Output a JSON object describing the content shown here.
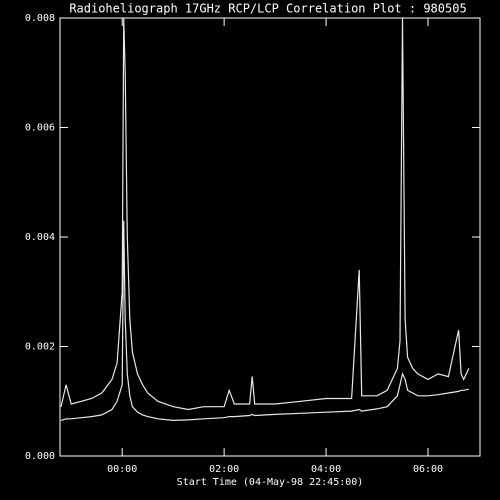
{
  "chart_data": {
    "type": "line",
    "title": "Radioheliograph 17GHz RCP/LCP Correlation Plot : 980505",
    "x_label": "Start Time (04-May-98 22:45:00)",
    "x": [
      -1.2,
      -1.1,
      -1.0,
      -0.8,
      -0.6,
      -0.4,
      -0.2,
      -0.1,
      0.0,
      0.03,
      0.06,
      0.1,
      0.15,
      0.2,
      0.3,
      0.4,
      0.5,
      0.7,
      1.0,
      1.3,
      1.6,
      2.0,
      2.1,
      2.2,
      2.5,
      2.55,
      2.6,
      3.0,
      3.5,
      4.0,
      4.5,
      4.65,
      4.7,
      5.0,
      5.2,
      5.4,
      5.45,
      5.5,
      5.55,
      5.6,
      5.7,
      5.8,
      6.0,
      6.2,
      6.4,
      6.6,
      6.65,
      6.7,
      6.8
    ],
    "series": [
      {
        "color": "#e8e8e8",
        "values": [
          0.0009,
          0.0013,
          0.00095,
          0.001,
          0.00105,
          0.00115,
          0.0014,
          0.0017,
          0.003,
          0.008,
          0.007,
          0.004,
          0.0025,
          0.0019,
          0.0015,
          0.0013,
          0.00115,
          0.001,
          0.0009,
          0.00085,
          0.0009,
          0.0009,
          0.0012,
          0.00095,
          0.00095,
          0.00145,
          0.00095,
          0.00095,
          0.001,
          0.00105,
          0.00105,
          0.0034,
          0.0011,
          0.0011,
          0.0012,
          0.0016,
          0.0021,
          0.008,
          0.0025,
          0.0018,
          0.0016,
          0.0015,
          0.0014,
          0.0015,
          0.00145,
          0.0023,
          0.0015,
          0.0014,
          0.0016
        ]
      },
      {
        "color": "#e8e8e8",
        "values": [
          0.00065,
          0.00068,
          0.00068,
          0.0007,
          0.00072,
          0.00075,
          0.00085,
          0.001,
          0.0013,
          0.0043,
          0.0025,
          0.0015,
          0.0011,
          0.0009,
          0.0008,
          0.00075,
          0.00072,
          0.00068,
          0.00065,
          0.00066,
          0.00068,
          0.0007,
          0.00072,
          0.00072,
          0.00074,
          0.00076,
          0.00074,
          0.00076,
          0.00078,
          0.0008,
          0.00082,
          0.00085,
          0.00082,
          0.00086,
          0.0009,
          0.0011,
          0.0013,
          0.0015,
          0.0014,
          0.0012,
          0.00115,
          0.0011,
          0.0011,
          0.00112,
          0.00115,
          0.00118,
          0.0012,
          0.0012,
          0.00122
        ]
      }
    ],
    "xlim": [
      -1.22,
      7.02
    ],
    "xticks": [
      {
        "value": 0,
        "label": "00:00"
      },
      {
        "value": 2,
        "label": "02:00"
      },
      {
        "value": 4,
        "label": "04:00"
      },
      {
        "value": 6,
        "label": "06:00"
      }
    ],
    "ylim": [
      0,
      0.008
    ],
    "yticks": [
      {
        "value": 0,
        "label": "0.000"
      },
      {
        "value": 0.002,
        "label": "0.002"
      },
      {
        "value": 0.004,
        "label": "0.004"
      },
      {
        "value": 0.006,
        "label": "0.006"
      },
      {
        "value": 0.008,
        "label": "0.008"
      }
    ]
  }
}
